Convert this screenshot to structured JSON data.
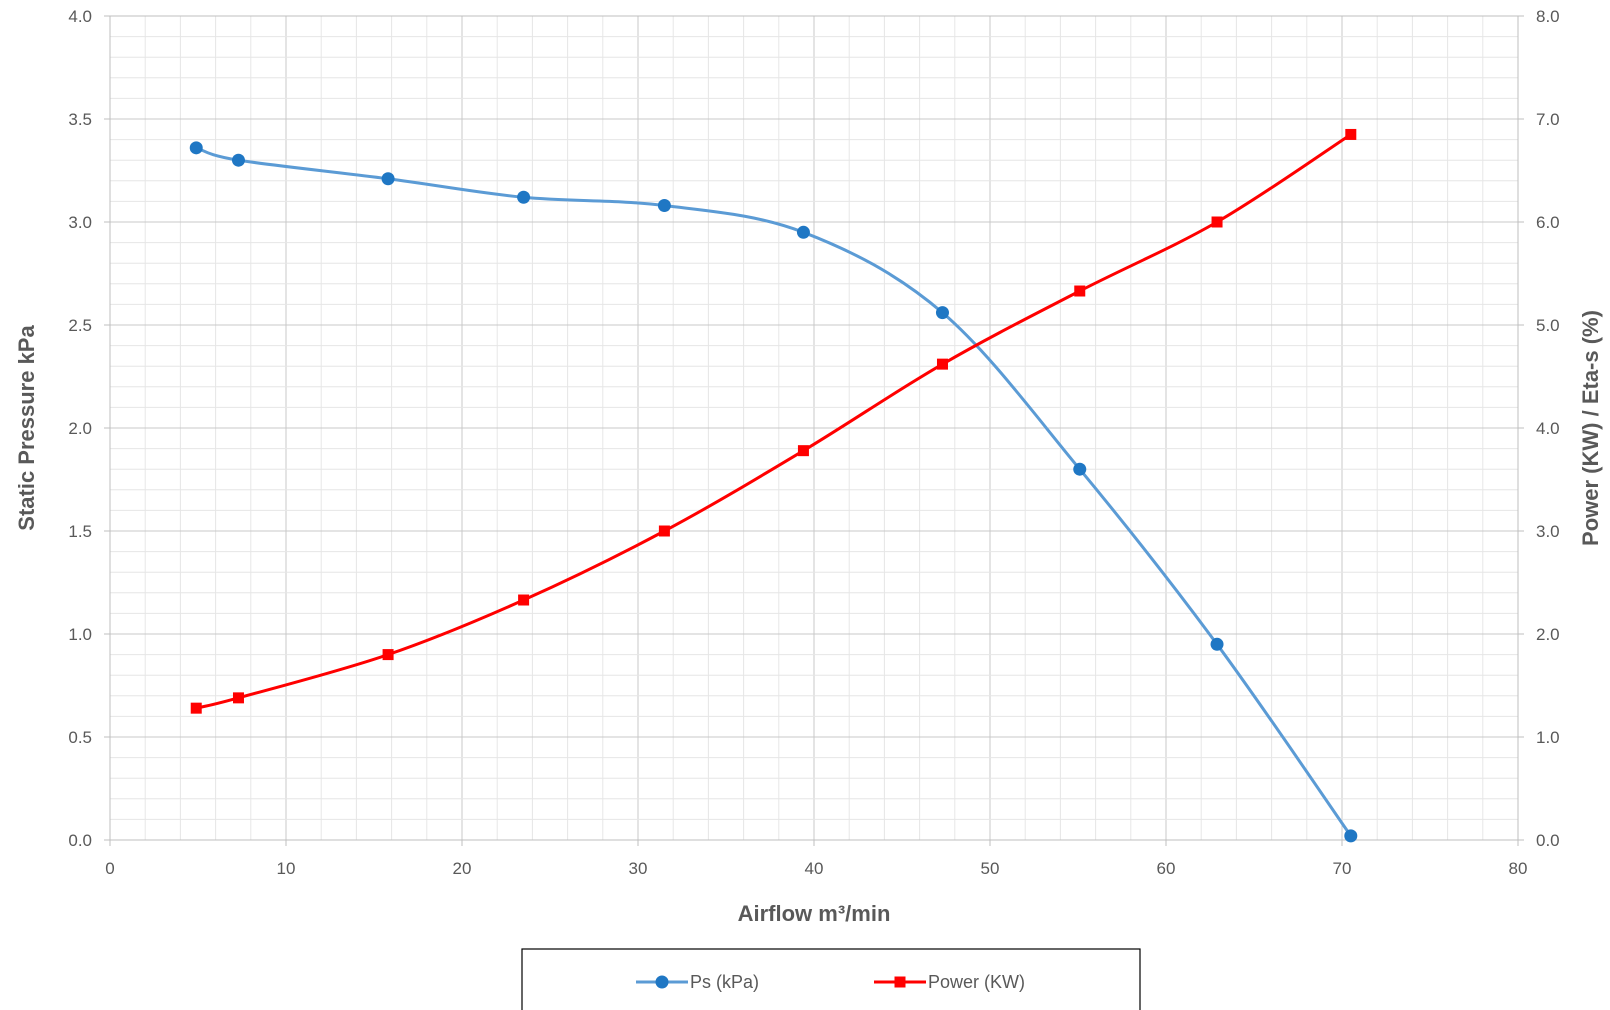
{
  "chart_data": {
    "type": "line",
    "title": "",
    "xlabel": "Airflow m³/min",
    "ylabel": "Static Pressure kPa",
    "y2label": "Power (KW) / Eta-s (%)",
    "xlim": [
      0,
      80
    ],
    "ylim": [
      0,
      4.0
    ],
    "y2lim": [
      0,
      8.0
    ],
    "x_ticks": [
      "0",
      "10",
      "20",
      "30",
      "40",
      "50",
      "60",
      "70",
      "80"
    ],
    "y_ticks": [
      "0.0",
      "0.5",
      "1.0",
      "1.5",
      "2.0",
      "2.5",
      "3.0",
      "3.5",
      "4.0"
    ],
    "y2_ticks": [
      "0.0",
      "1.0",
      "2.0",
      "3.0",
      "4.0",
      "5.0",
      "6.0",
      "7.0",
      "8.0"
    ],
    "grid": true,
    "legend_position": "bottom",
    "series": [
      {
        "name": "Ps (kPa)",
        "axis": "left",
        "marker": "circle",
        "color": "#5B9BD5",
        "marker_color": "#1F77C4",
        "x": [
          4.9,
          7.3,
          15.8,
          23.5,
          31.5,
          39.4,
          47.3,
          55.1,
          62.9,
          70.5
        ],
        "y": [
          3.36,
          3.3,
          3.21,
          3.12,
          3.08,
          2.95,
          2.56,
          1.8,
          0.95,
          0.02
        ]
      },
      {
        "name": "Power (KW)",
        "axis": "right",
        "marker": "square",
        "color": "#FF0000",
        "marker_color": "#FF0000",
        "x": [
          4.9,
          7.3,
          15.8,
          23.5,
          31.5,
          39.4,
          47.3,
          55.1,
          62.9,
          70.5
        ],
        "y": [
          1.28,
          1.38,
          1.8,
          2.33,
          3.0,
          3.78,
          4.62,
          5.33,
          6.0,
          6.85
        ]
      }
    ]
  }
}
